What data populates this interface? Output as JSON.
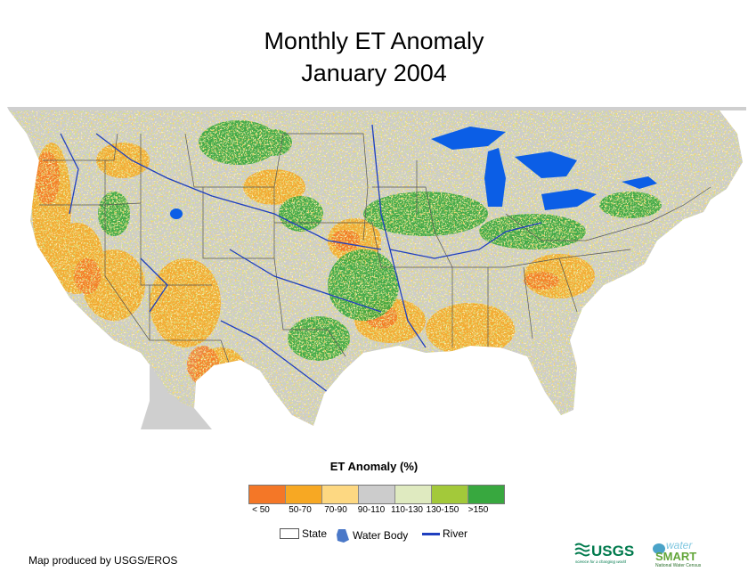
{
  "title": {
    "line1": "Monthly ET Anomaly",
    "line2": "January 2004"
  },
  "legend": {
    "title": "ET Anomaly (%)",
    "classes": [
      {
        "label": "< 50",
        "color": "#f47727"
      },
      {
        "label": "50-70",
        "color": "#f7a823"
      },
      {
        "label": "70-90",
        "color": "#fdd882"
      },
      {
        "label": "90-110",
        "color": "#cccccc"
      },
      {
        "label": "110-130",
        "color": "#dfeac0"
      },
      {
        "label": "130-150",
        "color": "#a3c93a"
      },
      {
        "label": ">150",
        "color": "#38a83f"
      }
    ]
  },
  "symbols": {
    "state": "State",
    "water_body": "Water Body",
    "river": "River"
  },
  "colors": {
    "water": "#0b5ee6",
    "river": "#1f3fbf",
    "state_line": "#555555",
    "background_land": "#cccccc"
  },
  "credit": "Map produced by USGS/EROS",
  "logos": {
    "usgs": "USGS",
    "usgs_tagline": "science for a changing world",
    "watersmart_top": "water",
    "watersmart_bottom": "SMART",
    "watersmart_tagline": "National Water Census"
  }
}
